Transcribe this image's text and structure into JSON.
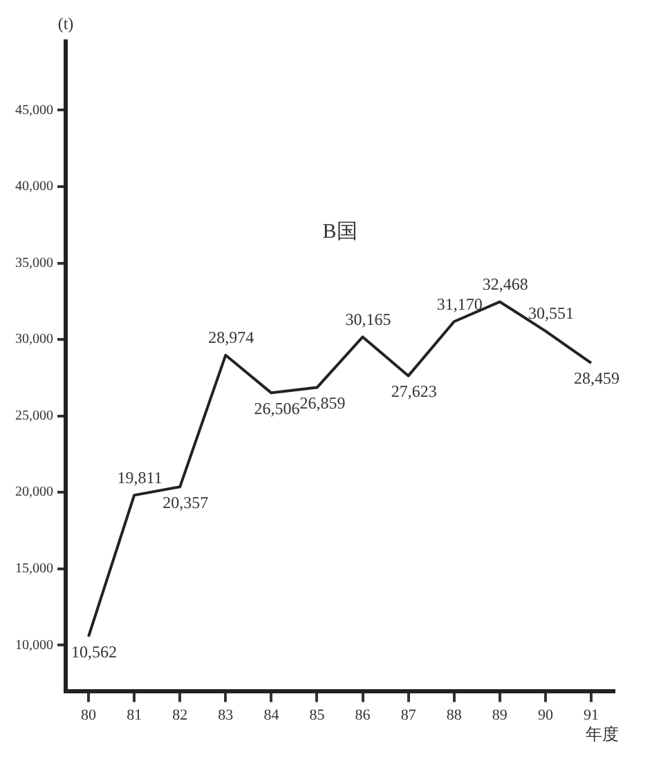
{
  "chart_data": {
    "type": "line",
    "title": "B国",
    "ylabel": "(t)",
    "xlabel": "年度",
    "categories": [
      "80",
      "81",
      "82",
      "83",
      "84",
      "85",
      "86",
      "87",
      "88",
      "89",
      "90",
      "91"
    ],
    "series": [
      {
        "color": "#222222",
        "values": [
          10562,
          19811,
          20357,
          28974,
          26506,
          26859,
          30165,
          27623,
          31170,
          32468,
          30551,
          28459
        ],
        "value_labels": [
          "10,562",
          "19,811",
          "20,357",
          "28,974",
          "26,506",
          "26,859",
          "30,165",
          "27,623",
          "31,170",
          "32,468",
          "30,551",
          "28,459"
        ]
      }
    ],
    "ylim": [
      7000,
      49500
    ],
    "yticks": [
      {
        "value": 10000,
        "label": "10,000"
      },
      {
        "value": 15000,
        "label": "15,000"
      },
      {
        "value": 20000,
        "label": "20,000"
      },
      {
        "value": 25000,
        "label": "25,000"
      },
      {
        "value": 30000,
        "label": "30,000"
      },
      {
        "value": 35000,
        "label": "35,000"
      },
      {
        "value": 40000,
        "label": "40,000"
      },
      {
        "value": 45000,
        "label": "45,000"
      }
    ],
    "grid": false,
    "legend": false,
    "marker": "none",
    "line_style": "solid"
  }
}
